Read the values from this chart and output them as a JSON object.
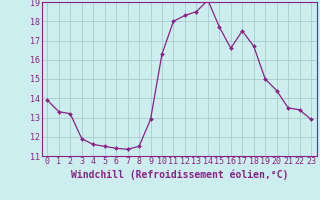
{
  "x": [
    0,
    1,
    2,
    3,
    4,
    5,
    6,
    7,
    8,
    9,
    10,
    11,
    12,
    13,
    14,
    15,
    16,
    17,
    18,
    19,
    20,
    21,
    22,
    23
  ],
  "y": [
    13.9,
    13.3,
    13.2,
    11.9,
    11.6,
    11.5,
    11.4,
    11.35,
    11.5,
    12.9,
    16.3,
    18.0,
    18.3,
    18.5,
    19.1,
    17.7,
    16.6,
    17.5,
    16.7,
    15.0,
    14.4,
    13.5,
    13.4,
    12.9
  ],
  "line_color": "#882288",
  "marker_color": "#882288",
  "bg_color": "#cceeee",
  "grid_color": "#aacccc",
  "xlabel": "Windchill (Refroidissement éolien,°C)",
  "xlim_min": -0.5,
  "xlim_max": 23.5,
  "ylim_min": 11,
  "ylim_max": 19,
  "yticks": [
    11,
    12,
    13,
    14,
    15,
    16,
    17,
    18,
    19
  ],
  "xticks": [
    0,
    1,
    2,
    3,
    4,
    5,
    6,
    7,
    8,
    9,
    10,
    11,
    12,
    13,
    14,
    15,
    16,
    17,
    18,
    19,
    20,
    21,
    22,
    23
  ],
  "tick_color": "#882288",
  "axis_color": "#882288",
  "label_fontsize": 7,
  "tick_fontsize": 6
}
